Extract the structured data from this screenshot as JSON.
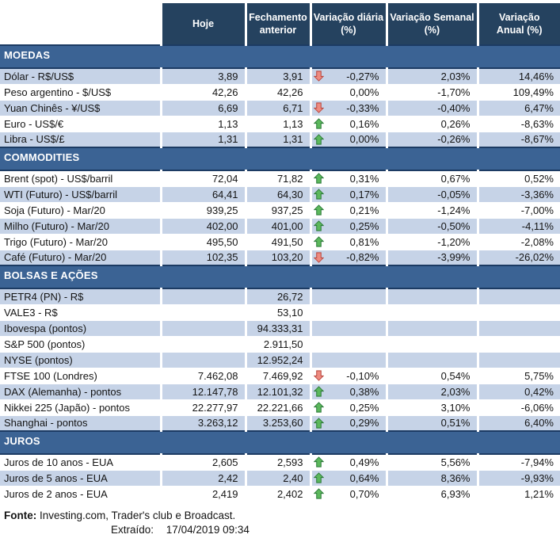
{
  "colors": {
    "header_bg": "#25425f",
    "section_bg": "#3b6394",
    "section_border": "#1c3b63",
    "row_alt": "#c6d3e7",
    "arrow_up_fill": "#5cb85c",
    "arrow_up_stroke": "#2e7d3b",
    "arrow_down_fill": "#ee8b80",
    "arrow_down_stroke": "#bb4a42"
  },
  "table": {
    "columns": [
      {
        "key": "hoje",
        "label": "Hoje"
      },
      {
        "key": "fechamento-anterior",
        "label": "Fechamento\nanterior"
      },
      {
        "key": "variacao-diaria",
        "label": "Variação diária\n(%)"
      },
      {
        "key": "variacao-semanal",
        "label": "Variação Semanal\n(%)"
      },
      {
        "key": "variacao-anual",
        "label": "Variação\nAnual (%)"
      }
    ],
    "sections": [
      {
        "key": "moedas",
        "title": "MOEDAS",
        "rows": [
          {
            "label": "Dólar - R$/US$",
            "hoje": "3,89",
            "fechamento": "3,91",
            "arrow": "down",
            "variacao_diaria": "-0,27%",
            "variacao_semanal": "2,03%",
            "variacao_anual": "14,46%",
            "shade": true
          },
          {
            "label": "Peso argentino - $/US$",
            "hoje": "42,26",
            "fechamento": "42,26",
            "arrow": null,
            "variacao_diaria": "0,00%",
            "variacao_semanal": "-1,70%",
            "variacao_anual": "109,49%",
            "shade": false
          },
          {
            "label": "Yuan Chinês - ¥/US$",
            "hoje": "6,69",
            "fechamento": "6,71",
            "arrow": "down",
            "variacao_diaria": "-0,33%",
            "variacao_semanal": "-0,40%",
            "variacao_anual": "6,47%",
            "shade": true
          },
          {
            "label": "Euro - US$/€",
            "hoje": "1,13",
            "fechamento": "1,13",
            "arrow": "up",
            "variacao_diaria": "0,16%",
            "variacao_semanal": "0,26%",
            "variacao_anual": "-8,63%",
            "shade": false
          },
          {
            "label": "Libra - US$/£",
            "hoje": "1,31",
            "fechamento": "1,31",
            "arrow": "up",
            "variacao_diaria": "0,00%",
            "variacao_semanal": "-0,26%",
            "variacao_anual": "-8,67%",
            "shade": true
          }
        ]
      },
      {
        "key": "commodities",
        "title": "COMMODITIES",
        "rows": [
          {
            "label": "Brent (spot) - US$/barril",
            "hoje": "72,04",
            "fechamento": "71,82",
            "arrow": "up",
            "variacao_diaria": "0,31%",
            "variacao_semanal": "0,67%",
            "variacao_anual": "0,52%",
            "shade": false
          },
          {
            "label": "WTI (Futuro) - US$/barril",
            "hoje": "64,41",
            "fechamento": "64,30",
            "arrow": "up",
            "variacao_diaria": "0,17%",
            "variacao_semanal": "-0,05%",
            "variacao_anual": "-3,36%",
            "shade": true
          },
          {
            "label": "Soja (Futuro) - Mar/20",
            "hoje": "939,25",
            "fechamento": "937,25",
            "arrow": "up",
            "variacao_diaria": "0,21%",
            "variacao_semanal": "-1,24%",
            "variacao_anual": "-7,00%",
            "shade": false
          },
          {
            "label": "Milho (Futuro) - Mar/20",
            "hoje": "402,00",
            "fechamento": "401,00",
            "arrow": "up",
            "variacao_diaria": "0,25%",
            "variacao_semanal": "-0,50%",
            "variacao_anual": "-4,11%",
            "shade": true
          },
          {
            "label": "Trigo (Futuro) - Mar/20",
            "hoje": "495,50",
            "fechamento": "491,50",
            "arrow": "up",
            "variacao_diaria": "0,81%",
            "variacao_semanal": "-1,20%",
            "variacao_anual": "-2,08%",
            "shade": false
          },
          {
            "label": "Café (Futuro) - Mar/20",
            "hoje": "102,35",
            "fechamento": "103,20",
            "arrow": "down",
            "variacao_diaria": "-0,82%",
            "variacao_semanal": "-3,99%",
            "variacao_anual": "-26,02%",
            "shade": true
          }
        ]
      },
      {
        "key": "bolsas-e-acoes",
        "title": "BOLSAS E AÇÕES",
        "rows": [
          {
            "label": "PETR4 (PN) - R$",
            "hoje": "",
            "fechamento": "26,72",
            "arrow": null,
            "variacao_diaria": "",
            "variacao_semanal": "",
            "variacao_anual": "",
            "shade": true
          },
          {
            "label": "VALE3 - R$",
            "hoje": "",
            "fechamento": "53,10",
            "arrow": null,
            "variacao_diaria": "",
            "variacao_semanal": "",
            "variacao_anual": "",
            "shade": false
          },
          {
            "label": "Ibovespa (pontos)",
            "hoje": "",
            "fechamento": "94.333,31",
            "arrow": null,
            "variacao_diaria": "",
            "variacao_semanal": "",
            "variacao_anual": "",
            "shade": true
          },
          {
            "label": "S&P 500 (pontos)",
            "hoje": "",
            "fechamento": "2.911,50",
            "arrow": null,
            "variacao_diaria": "",
            "variacao_semanal": "",
            "variacao_anual": "",
            "shade": false
          },
          {
            "label": "NYSE (pontos)",
            "hoje": "",
            "fechamento": "12.952,24",
            "arrow": null,
            "variacao_diaria": "",
            "variacao_semanal": "",
            "variacao_anual": "",
            "shade": true
          },
          {
            "label": "FTSE 100 (Londres)",
            "hoje": "7.462,08",
            "fechamento": "7.469,92",
            "arrow": "down",
            "variacao_diaria": "-0,10%",
            "variacao_semanal": "0,54%",
            "variacao_anual": "5,75%",
            "shade": false
          },
          {
            "label": "DAX (Alemanha) - pontos",
            "hoje": "12.147,78",
            "fechamento": "12.101,32",
            "arrow": "up",
            "variacao_diaria": "0,38%",
            "variacao_semanal": "2,03%",
            "variacao_anual": "0,42%",
            "shade": true
          },
          {
            "label": "Nikkei 225 (Japão) - pontos",
            "hoje": "22.277,97",
            "fechamento": "22.221,66",
            "arrow": "up",
            "variacao_diaria": "0,25%",
            "variacao_semanal": "3,10%",
            "variacao_anual": "-6,06%",
            "shade": false
          },
          {
            "label": "Shanghai - pontos",
            "hoje": "3.263,12",
            "fechamento": "3.253,60",
            "arrow": "up",
            "variacao_diaria": "0,29%",
            "variacao_semanal": "0,51%",
            "variacao_anual": "6,40%",
            "shade": true
          }
        ]
      },
      {
        "key": "juros",
        "title": "JUROS",
        "rows": [
          {
            "label": "Juros de 10 anos - EUA",
            "hoje": "2,605",
            "fechamento": "2,593",
            "arrow": "up",
            "variacao_diaria": "0,49%",
            "variacao_semanal": "5,56%",
            "variacao_anual": "-7,94%",
            "shade": false
          },
          {
            "label": "Juros de 5 anos - EUA",
            "hoje": "2,42",
            "fechamento": "2,40",
            "arrow": "up",
            "variacao_diaria": "0,64%",
            "variacao_semanal": "8,36%",
            "variacao_anual": "-9,93%",
            "shade": true
          },
          {
            "label": "Juros de 2 anos - EUA",
            "hoje": "2,419",
            "fechamento": "2,402",
            "arrow": "up",
            "variacao_diaria": "0,70%",
            "variacao_semanal": "6,93%",
            "variacao_anual": "1,21%",
            "shade": false
          }
        ]
      }
    ]
  },
  "footer": {
    "fonte_label": "Fonte:",
    "fonte_text": "Investing.com, Trader's club e Broadcast.",
    "extraido_label": "Extraído:",
    "extraido_value": "17/04/2019 09:34"
  }
}
